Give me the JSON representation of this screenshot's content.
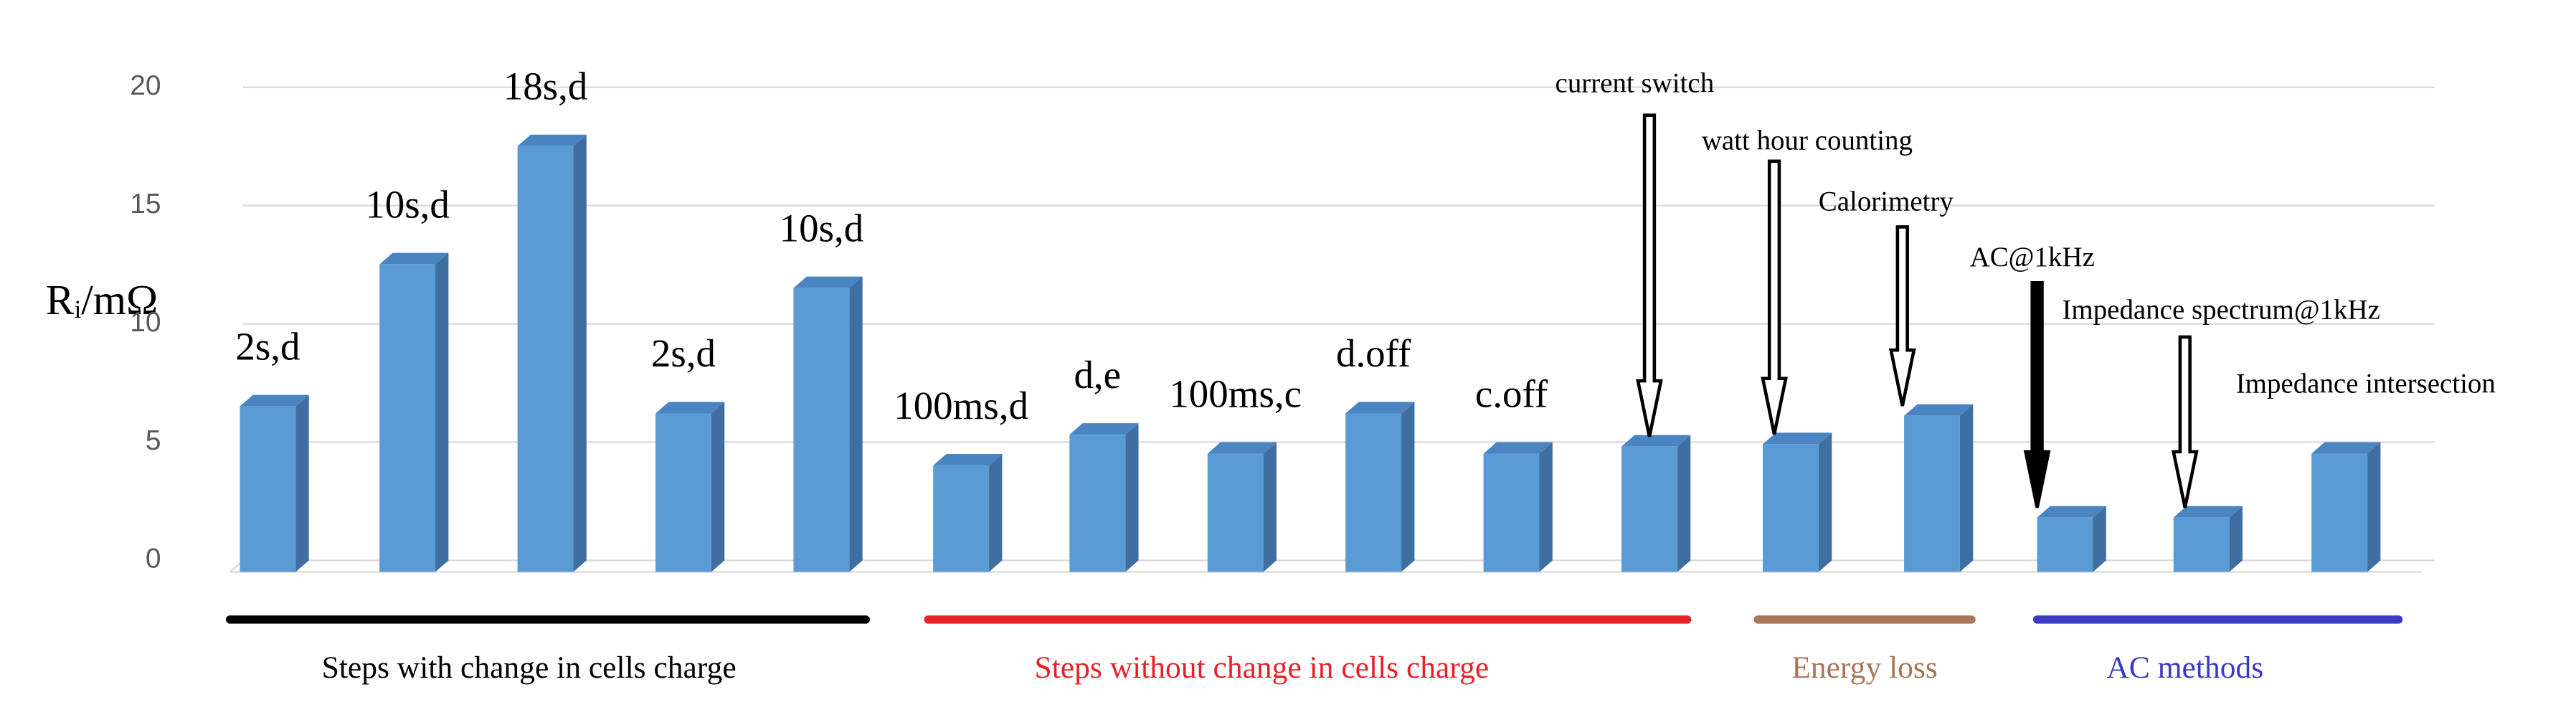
{
  "chart_data": {
    "type": "bar3d",
    "y_label": "Rᵢ/mΩ",
    "categories": [
      "2s,d",
      "10s,d",
      "18s,d",
      "2s,d",
      "10s,d",
      "100ms,d",
      "d,e",
      "100ms,c",
      "d.off",
      "c.off",
      "current switch",
      "watt hour counting",
      "Calorimetry",
      "AC@1kHz",
      "Impedance spectrum@1kHz",
      "Impedance intersection"
    ],
    "values": [
      7,
      13,
      18,
      6.7,
      12,
      4.5,
      5.8,
      5,
      6.7,
      5,
      5.3,
      5.4,
      6.6,
      2.3,
      2.3,
      5
    ],
    "color": "#5b9bd5",
    "ylim": [
      0,
      20
    ],
    "yticks": [
      0,
      5,
      10,
      15,
      20
    ],
    "grid": true,
    "groups": [
      {
        "name": "Steps with change in cells charge",
        "color": "#000000"
      },
      {
        "name": "Steps without change in cells charge",
        "color": "#e8202a"
      },
      {
        "name": "Energy loss",
        "color": "#a9745a"
      },
      {
        "name": "AC methods",
        "color": "#3a3ac2"
      }
    ]
  }
}
